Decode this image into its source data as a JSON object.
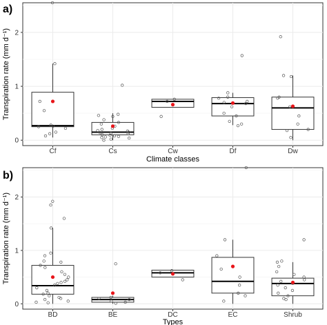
{
  "chart_data": [
    {
      "type": "box",
      "panel_label": "a)",
      "xlabel": "Climate classes",
      "ylabel": "Transpiration rate (mm d⁻¹)",
      "ylim": [
        -0.1,
        2.55
      ],
      "yticks": [
        0,
        1,
        2
      ],
      "grid": true,
      "categories": [
        "Cf",
        "Cs",
        "Cw",
        "Df",
        "Dw"
      ],
      "boxes": [
        {
          "q1": 0.25,
          "median": 0.27,
          "q3": 0.89,
          "whisker_low": 0.05,
          "whisker_high": 1.42,
          "mean": 0.72,
          "points": [
            2.55,
            1.42,
            0.72,
            0.55,
            0.28,
            0.26,
            0.25,
            0.22,
            0.15,
            0.12,
            0.08
          ]
        },
        {
          "q1": 0.1,
          "median": 0.15,
          "q3": 0.33,
          "whisker_low": 0.0,
          "whisker_high": 0.5,
          "mean": 0.26,
          "points": [
            1.02,
            0.48,
            0.46,
            0.44,
            0.38,
            0.33,
            0.3,
            0.26,
            0.22,
            0.2,
            0.18,
            0.17,
            0.15,
            0.14,
            0.13,
            0.12,
            0.1,
            0.09,
            0.08,
            0.07,
            0.06,
            0.05,
            0.04,
            0.02,
            0.0
          ]
        },
        {
          "q1": 0.61,
          "median": 0.72,
          "q3": 0.76,
          "whisker_low": 0.61,
          "whisker_high": 0.76,
          "mean": 0.66,
          "points": [
            0.76,
            0.72,
            0.44
          ]
        },
        {
          "q1": 0.45,
          "median": 0.68,
          "q3": 0.79,
          "whisker_low": 0.28,
          "whisker_high": 0.88,
          "mean": 0.69,
          "points": [
            1.57,
            0.88,
            0.8,
            0.78,
            0.72,
            0.7,
            0.68,
            0.62,
            0.5,
            0.45,
            0.35,
            0.3,
            0.27
          ]
        },
        {
          "q1": 0.2,
          "median": 0.6,
          "q3": 0.8,
          "whisker_low": 0.0,
          "whisker_high": 1.2,
          "mean": 0.63,
          "points": [
            1.92,
            1.2,
            1.18,
            0.8,
            0.78,
            0.62,
            0.45,
            0.3,
            0.2,
            0.18,
            0.05
          ]
        }
      ]
    },
    {
      "type": "box",
      "panel_label": "b)",
      "xlabel": "Types",
      "ylabel": "Transpiration rate (mm d⁻¹)",
      "ylim": [
        -0.1,
        2.55
      ],
      "yticks": [
        0,
        1,
        2
      ],
      "grid": true,
      "categories": [
        "BD",
        "BE",
        "DC",
        "EC",
        "Shrub"
      ],
      "boxes": [
        {
          "q1": 0.18,
          "median": 0.34,
          "q3": 0.72,
          "whisker_low": 0.0,
          "whisker_high": 1.42,
          "mean": 0.5,
          "points": [
            1.92,
            1.85,
            1.6,
            1.42,
            0.95,
            0.9,
            0.8,
            0.78,
            0.72,
            0.68,
            0.6,
            0.55,
            0.5,
            0.45,
            0.42,
            0.4,
            0.38,
            0.35,
            0.3,
            0.25,
            0.2,
            0.18,
            0.15,
            0.12,
            0.1,
            0.08,
            0.05,
            0.03,
            0.02
          ]
        },
        {
          "q1": 0.03,
          "median": 0.08,
          "q3": 0.12,
          "whisker_low": 0.0,
          "whisker_high": 0.15,
          "mean": 0.2,
          "points": [
            0.75,
            0.12,
            0.1,
            0.08,
            0.05,
            0.03,
            0.01
          ]
        },
        {
          "q1": 0.5,
          "median": 0.58,
          "q3": 0.63,
          "whisker_low": 0.5,
          "whisker_high": 0.63,
          "mean": 0.56,
          "points": [
            0.62,
            0.58,
            0.45
          ]
        },
        {
          "q1": 0.2,
          "median": 0.42,
          "q3": 0.87,
          "whisker_low": 0.0,
          "whisker_high": 1.2,
          "mean": 0.7,
          "points": [
            2.55,
            1.2,
            0.9,
            0.65,
            0.5,
            0.35,
            0.2,
            0.15,
            0.05
          ]
        },
        {
          "q1": 0.15,
          "median": 0.38,
          "q3": 0.48,
          "whisker_low": 0.0,
          "whisker_high": 0.78,
          "mean": 0.4,
          "points": [
            1.2,
            0.8,
            0.78,
            0.7,
            0.6,
            0.55,
            0.5,
            0.45,
            0.42,
            0.38,
            0.35,
            0.3,
            0.25,
            0.2,
            0.15,
            0.1,
            0.08
          ]
        }
      ]
    }
  ],
  "colors": {
    "mean": "#e8161b",
    "box": "#333333",
    "grid": "#ebebeb",
    "point": "#555555",
    "panel_border": "#333333"
  }
}
